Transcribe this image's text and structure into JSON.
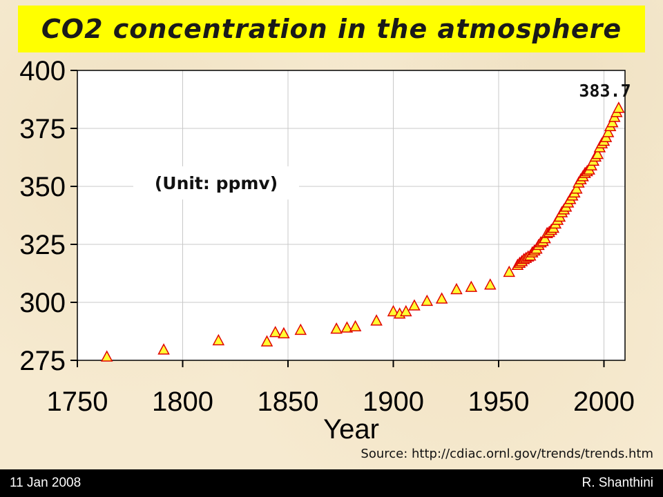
{
  "title": "CO2 concentration in the atmosphere",
  "unit_label": "(Unit: ppmv)",
  "source": "Source: http://cdiac.ornl.gov/trends/trends.htm",
  "footer": {
    "date": "11 Jan 2008",
    "author": "R. Shanthini"
  },
  "colors": {
    "title_bg": "#ffff00",
    "marker_fill": "#ffff33",
    "marker_stroke": "#e00000",
    "footer_bg": "#000000"
  },
  "chart_data": {
    "type": "scatter",
    "title": "CO2 concentration in the atmosphere",
    "xlabel": "Year",
    "ylabel": "",
    "xlim": [
      1750,
      2010
    ],
    "ylim": [
      275,
      400
    ],
    "xticks": [
      1750,
      1800,
      1850,
      1900,
      1950,
      2000
    ],
    "yticks": [
      275,
      300,
      325,
      350,
      375,
      400
    ],
    "grid": true,
    "annotation": {
      "text": "383.7",
      "x": 2007,
      "y": 383.7
    },
    "series": [
      {
        "marker": "triangle",
        "x": [
          1764,
          1791,
          1817,
          1840,
          1844,
          1848,
          1856,
          1873,
          1878,
          1882,
          1892,
          1900,
          1903,
          1906,
          1910,
          1916,
          1923,
          1930,
          1937,
          1946,
          1955,
          1959,
          1960,
          1961,
          1962,
          1963,
          1964,
          1965,
          1966,
          1967,
          1968,
          1969,
          1970,
          1971,
          1972,
          1973,
          1974,
          1975,
          1976,
          1977,
          1978,
          1979,
          1980,
          1981,
          1982,
          1983,
          1984,
          1985,
          1986,
          1987,
          1988,
          1989,
          1990,
          1991,
          1992,
          1993,
          1994,
          1995,
          1996,
          1997,
          1998,
          1999,
          2000,
          2001,
          2002,
          2003,
          2004,
          2005,
          2006,
          2007
        ],
        "y": [
          276.5,
          279.5,
          283.5,
          283,
          287,
          286.5,
          288,
          288.5,
          289,
          289.5,
          292,
          296,
          295,
          296,
          298.5,
          300.5,
          301.5,
          305.5,
          306.5,
          307.5,
          313,
          316,
          316.9,
          317.6,
          318.5,
          319,
          319.6,
          320,
          321.4,
          322.2,
          323,
          324.6,
          325.7,
          326.3,
          327.5,
          329.7,
          330.2,
          331.1,
          332,
          333.8,
          335.4,
          336.8,
          338.7,
          339.9,
          341.1,
          342.9,
          344.4,
          345.9,
          347.2,
          348.9,
          351.5,
          352.9,
          354.2,
          355.6,
          356.4,
          357.1,
          358.9,
          360.9,
          362.7,
          363.8,
          366.7,
          368.4,
          369.5,
          371.1,
          373.2,
          375.8,
          377.5,
          379.8,
          381.9,
          383.7
        ]
      }
    ]
  }
}
